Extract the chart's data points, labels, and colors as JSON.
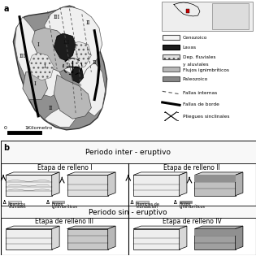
{
  "fig_bg": "#f0f0f0",
  "white": "#ffffff",
  "periodo_inter": "Periodo inter - eruptivo",
  "periodo_sin": "Periodo sin - eruptivo",
  "etapa_I": "Etapa de relleno I",
  "etapa_II": "Etapa de relleno II",
  "etapa_III": "Etapa de relleno III",
  "etapa_IV": "Etapa de relleno IV",
  "legend_I_1a": "Abanicos",
  "legend_I_1b": "aluviales",
  "legend_I_2a": "Flujos",
  "legend_I_2b": "ignimbríticos",
  "legend_II_1a": "Planicies de",
  "legend_II_1b": "inundación",
  "legend_II_2a": "Flujos",
  "legend_II_2b": "ignimbríticos",
  "scale_label": "1Kilometro",
  "leg_cenozoico": "Cenozoico",
  "leg_lavas": "Lavas",
  "leg_dep": "Dep. fluviales",
  "leg_dep2": "y aluviales",
  "leg_flujos": "Flujos ignimbríticos",
  "leg_paleo": "Paleozoico",
  "leg_fallas_int": "Fallas internas",
  "leg_fallas_borde": "Fallas de borde",
  "leg_pliegues": "Pliegues sinclinales",
  "col_cenozoico": "#f5f5f5",
  "col_lavas": "#1c1c1c",
  "col_dep": "#e0e0e0",
  "col_flujos": "#b8b8b8",
  "col_paleo": "#888888",
  "col_map_bg": "#c8c8c8",
  "col_dark_ignimb": "#787878",
  "col_border": "#000000"
}
